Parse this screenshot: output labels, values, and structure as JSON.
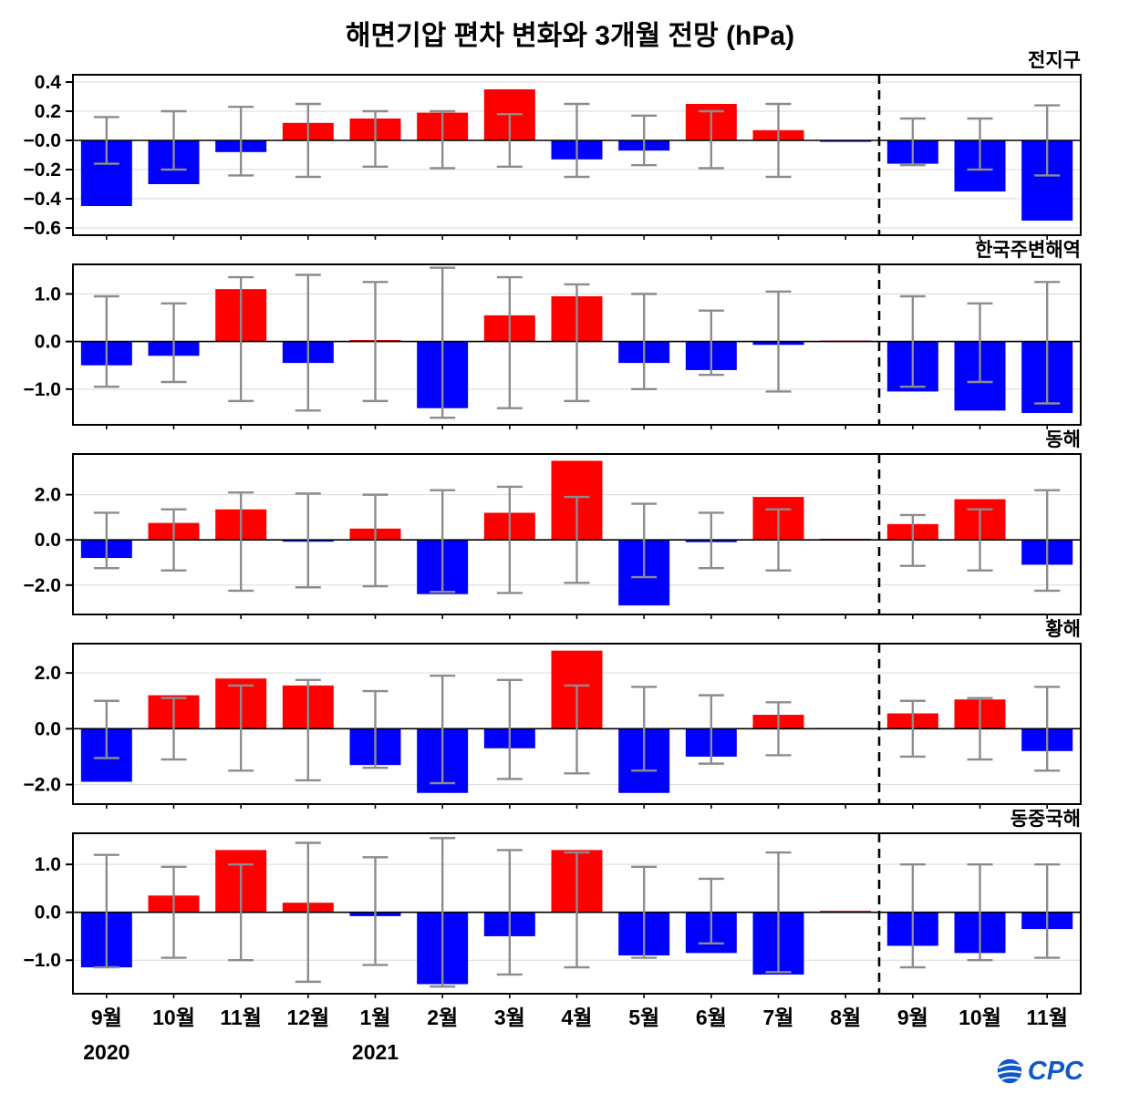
{
  "colors": {
    "positive": "#ff0000",
    "negative": "#0000ff",
    "error": "#8c8c8c",
    "grid": "#d9d9d9",
    "axis": "#000000",
    "logo": "#1057c8"
  },
  "logo": {
    "icon": "globe-icon",
    "text": "CPC"
  },
  "chart_data": {
    "type": "bar",
    "title": "해면기압 편차 변화와 3개월 전망 (hPa)",
    "unit": "hPa",
    "categories": [
      "9월",
      "10월",
      "11월",
      "12월",
      "1월",
      "2월",
      "3월",
      "4월",
      "5월",
      "6월",
      "7월",
      "8월",
      "9월",
      "10월",
      "11월"
    ],
    "category_years": [
      {
        "label": "2020",
        "index": 0
      },
      {
        "label": "2021",
        "index": 4
      }
    ],
    "forecast_divider_after_index": 11,
    "legend_position": "none",
    "grid": true,
    "panels": [
      {
        "title": "전지구",
        "ylim": [
          -0.65,
          0.45
        ],
        "yticks": [
          {
            "v": 0.4,
            "label": "0.4"
          },
          {
            "v": 0.2,
            "label": "0.2"
          },
          {
            "v": 0,
            "label": "−0.0"
          },
          {
            "v": -0.2,
            "label": "−0.2"
          },
          {
            "v": -0.4,
            "label": "−0.4"
          },
          {
            "v": -0.6,
            "label": "−0.6"
          }
        ],
        "values": [
          -0.45,
          -0.3,
          -0.08,
          0.12,
          0.15,
          0.19,
          0.35,
          -0.13,
          -0.07,
          0.25,
          0.07,
          -0.01,
          -0.16,
          -0.35,
          -0.55
        ],
        "error_high": [
          0.16,
          0.2,
          0.23,
          0.25,
          0.2,
          0.2,
          0.18,
          0.25,
          0.17,
          0.2,
          0.25,
          null,
          0.15,
          0.15,
          0.24
        ],
        "error_low": [
          -0.16,
          -0.2,
          -0.24,
          -0.25,
          -0.18,
          -0.19,
          -0.18,
          -0.25,
          -0.17,
          -0.19,
          -0.25,
          null,
          -0.17,
          -0.2,
          -0.24
        ]
      },
      {
        "title": "한국주변해역",
        "ylim": [
          -1.75,
          1.62
        ],
        "yticks": [
          {
            "v": 1,
            "label": "1.0"
          },
          {
            "v": 0,
            "label": "0.0"
          },
          {
            "v": -1,
            "label": "−1.0"
          }
        ],
        "values": [
          -0.5,
          -0.3,
          1.1,
          -0.45,
          0.03,
          -1.4,
          0.55,
          0.95,
          -0.45,
          -0.6,
          -0.07,
          0.02,
          -1.05,
          -1.45,
          -1.5
        ],
        "error_high": [
          0.95,
          0.8,
          1.35,
          1.4,
          1.25,
          1.55,
          1.35,
          1.2,
          1.0,
          0.65,
          1.05,
          null,
          0.95,
          0.8,
          1.25
        ],
        "error_low": [
          -0.95,
          -0.85,
          -1.25,
          -1.45,
          -1.25,
          -1.6,
          -1.4,
          -1.25,
          -1.0,
          -0.7,
          -1.05,
          null,
          -0.95,
          -0.85,
          -1.3
        ]
      },
      {
        "title": "동해",
        "ylim": [
          -3.3,
          3.8
        ],
        "yticks": [
          {
            "v": 2,
            "label": "2.0"
          },
          {
            "v": 0,
            "label": "0.0"
          },
          {
            "v": -2,
            "label": "−2.0"
          }
        ],
        "values": [
          -0.8,
          0.75,
          1.35,
          -0.08,
          0.5,
          -2.4,
          1.2,
          3.5,
          -2.9,
          -0.1,
          1.9,
          0.05,
          0.7,
          1.8,
          -1.1
        ],
        "error_high": [
          1.2,
          1.35,
          2.1,
          2.05,
          2.0,
          2.2,
          2.35,
          1.9,
          1.6,
          1.2,
          1.35,
          null,
          1.1,
          1.35,
          2.2
        ],
        "error_low": [
          -1.25,
          -1.35,
          -2.25,
          -2.1,
          -2.05,
          -2.3,
          -2.35,
          -1.9,
          -1.65,
          -1.25,
          -1.35,
          null,
          -1.15,
          -1.35,
          -2.25
        ]
      },
      {
        "title": "황해",
        "ylim": [
          -2.7,
          3.05
        ],
        "yticks": [
          {
            "v": 2,
            "label": "2.0"
          },
          {
            "v": 0,
            "label": "0.0"
          },
          {
            "v": -2,
            "label": "−2.0"
          }
        ],
        "values": [
          -1.9,
          1.2,
          1.8,
          1.55,
          -1.3,
          -2.3,
          -0.7,
          2.8,
          -2.3,
          -1.0,
          0.5,
          0.03,
          0.55,
          1.05,
          -0.8
        ],
        "error_high": [
          1.0,
          1.1,
          1.55,
          1.75,
          1.35,
          1.9,
          1.75,
          1.55,
          1.5,
          1.2,
          0.95,
          null,
          1.0,
          1.1,
          1.5
        ],
        "error_low": [
          -1.05,
          -1.1,
          -1.5,
          -1.85,
          -1.4,
          -1.95,
          -1.8,
          -1.6,
          -1.5,
          -1.25,
          -0.95,
          null,
          -1.0,
          -1.1,
          -1.5
        ]
      },
      {
        "title": "동중국해",
        "ylim": [
          -1.7,
          1.65
        ],
        "yticks": [
          {
            "v": 1,
            "label": "1.0"
          },
          {
            "v": 0,
            "label": "0.0"
          },
          {
            "v": -1,
            "label": "−1.0"
          }
        ],
        "values": [
          -1.15,
          0.35,
          1.3,
          0.2,
          -0.08,
          -1.5,
          -0.5,
          1.3,
          -0.9,
          -0.85,
          -1.3,
          0.03,
          -0.7,
          -0.85,
          -0.35
        ],
        "error_high": [
          1.2,
          0.95,
          1.0,
          1.45,
          1.15,
          1.55,
          1.3,
          1.25,
          0.95,
          0.7,
          1.25,
          null,
          1.0,
          1.0,
          1.0
        ],
        "error_low": [
          -1.15,
          -0.95,
          -1.0,
          -1.45,
          -1.1,
          -1.55,
          -1.3,
          -1.15,
          -0.95,
          -0.65,
          -1.25,
          null,
          -1.15,
          -1.0,
          -0.95
        ]
      }
    ]
  }
}
